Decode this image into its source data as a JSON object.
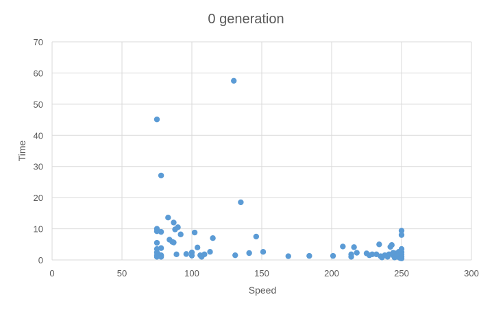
{
  "chart_data": {
    "type": "scatter",
    "title": "0 generation",
    "xlabel": "Speed",
    "ylabel": "Time",
    "xlim": [
      0,
      300
    ],
    "ylim": [
      0,
      70
    ],
    "xticks": [
      0,
      50,
      100,
      150,
      200,
      250,
      300
    ],
    "yticks": [
      0,
      10,
      20,
      30,
      40,
      50,
      60,
      70
    ],
    "grid": true,
    "legend": "none",
    "colors": {
      "points": "#5b9bd5",
      "grid": "#d9d9d9",
      "text": "#595959"
    },
    "series": [
      {
        "points": [
          [
            75,
            45.1
          ],
          [
            78,
            27.1
          ],
          [
            130,
            57.5
          ],
          [
            135,
            18.5
          ],
          [
            75,
            10.0
          ],
          [
            75,
            9.2
          ],
          [
            75,
            5.5
          ],
          [
            75,
            3.5
          ],
          [
            75,
            2.4
          ],
          [
            75,
            1.5
          ],
          [
            75,
            1.0
          ],
          [
            76,
            1.8
          ],
          [
            77,
            1.2
          ],
          [
            78,
            9.0
          ],
          [
            78,
            3.8
          ],
          [
            78,
            1.5
          ],
          [
            78,
            1.0
          ],
          [
            83,
            13.6
          ],
          [
            84,
            6.5
          ],
          [
            86,
            5.8
          ],
          [
            87,
            12.0
          ],
          [
            87,
            5.6
          ],
          [
            88,
            9.8
          ],
          [
            90,
            10.5
          ],
          [
            89,
            1.8
          ],
          [
            92,
            8.2
          ],
          [
            96,
            1.9
          ],
          [
            100,
            2.4
          ],
          [
            100,
            1.4
          ],
          [
            102,
            8.8
          ],
          [
            104,
            4.0
          ],
          [
            106,
            1.5
          ],
          [
            107,
            1.0
          ],
          [
            109,
            1.8
          ],
          [
            113,
            2.6
          ],
          [
            115,
            7.0
          ],
          [
            131,
            1.5
          ],
          [
            141,
            2.2
          ],
          [
            146,
            7.5
          ],
          [
            151,
            2.6
          ],
          [
            169,
            1.2
          ],
          [
            184,
            1.3
          ],
          [
            201,
            1.3
          ],
          [
            208,
            4.3
          ],
          [
            214,
            1.8
          ],
          [
            214,
            1.0
          ],
          [
            216,
            4.1
          ],
          [
            218,
            2.3
          ],
          [
            225,
            2.1
          ],
          [
            227,
            1.5
          ],
          [
            229,
            1.8
          ],
          [
            232,
            1.8
          ],
          [
            234,
            5.0
          ],
          [
            235,
            1.2
          ],
          [
            236,
            0.8
          ],
          [
            238,
            1.5
          ],
          [
            240,
            1.0
          ],
          [
            241,
            1.8
          ],
          [
            242,
            4.2
          ],
          [
            243,
            4.8
          ],
          [
            244,
            2.3
          ],
          [
            244,
            1.5
          ],
          [
            245,
            0.8
          ],
          [
            246,
            2.1
          ],
          [
            247,
            1.0
          ],
          [
            248,
            2.6
          ],
          [
            248,
            1.4
          ],
          [
            249,
            0.6
          ],
          [
            250,
            9.4
          ],
          [
            250,
            8.0
          ],
          [
            250,
            3.5
          ],
          [
            250,
            2.5
          ],
          [
            250,
            1.8
          ],
          [
            250,
            1.0
          ],
          [
            250,
            0.5
          ]
        ]
      }
    ]
  }
}
